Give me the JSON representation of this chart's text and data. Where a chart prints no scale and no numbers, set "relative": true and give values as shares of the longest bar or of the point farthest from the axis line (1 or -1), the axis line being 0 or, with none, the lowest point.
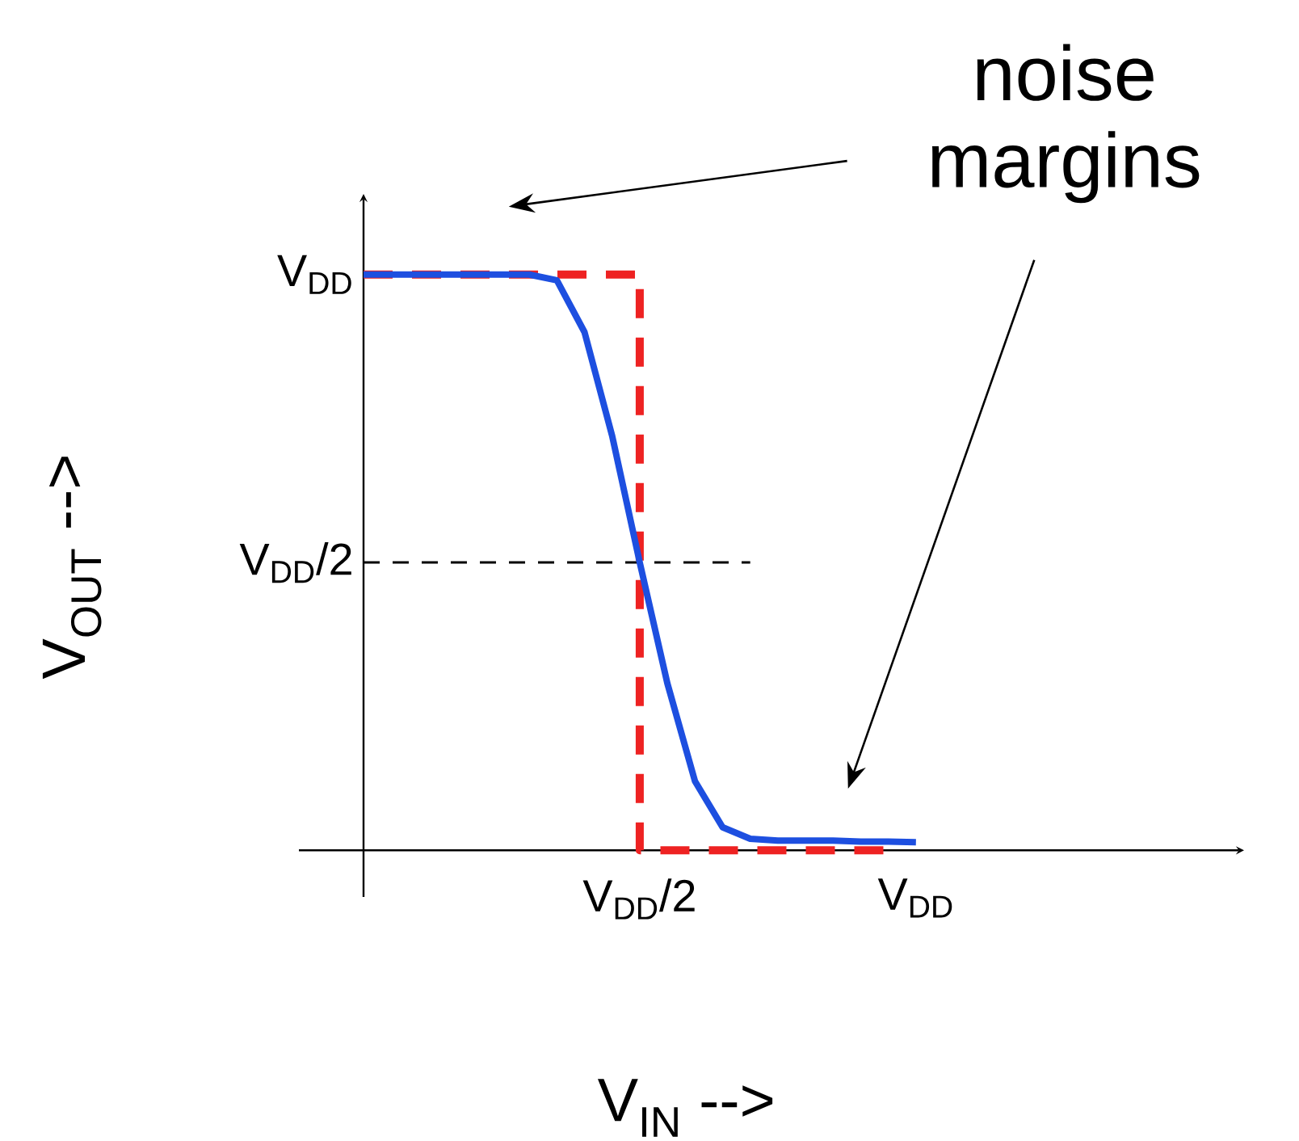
{
  "chart_data": {
    "type": "line",
    "xlabel": "V$_{IN}$ -->",
    "ylabel": "V$_{OUT}$ -->",
    "relative": true,
    "categories": [
      null,
      null,
      null,
      null,
      null,
      null,
      null,
      null,
      null,
      null,
      "V$_{DD}$/2",
      null,
      null,
      null,
      null,
      null,
      null,
      null,
      null,
      null,
      "V$_{DD}$"
    ],
    "annotations": [
      "noise margins",
      "V$_{DD}$/2",
      "V$_{DD}$"
    ],
    "series": [
      {
        "type": "step",
        "color": "#ee2222",
        "line_style": "dashed",
        "values": [
          1,
          1,
          1,
          1,
          1,
          1,
          1,
          1,
          1,
          1,
          0,
          0,
          0,
          0,
          0,
          0,
          0,
          0,
          0,
          0,
          null
        ]
      },
      {
        "color": "#000000",
        "line_style": "dashed",
        "values": [
          0.5,
          0.5,
          0.5,
          0.5,
          0.5,
          0.5,
          0.5,
          0.5,
          0.5,
          0.5,
          0.5,
          0.5,
          0.5,
          0.5,
          0.5,
          null,
          null,
          null,
          null,
          null,
          null
        ]
      },
      {
        "color": "#1d4fe0",
        "line_style": "solid",
        "values": [
          1,
          1,
          1,
          1,
          1,
          1,
          1,
          0.99,
          0.9,
          0.72,
          0.5,
          0.29,
          0.12,
          0.04,
          0.02,
          0.017,
          0.017,
          0.017,
          0.015,
          0.015,
          0.014
        ]
      }
    ]
  }
}
